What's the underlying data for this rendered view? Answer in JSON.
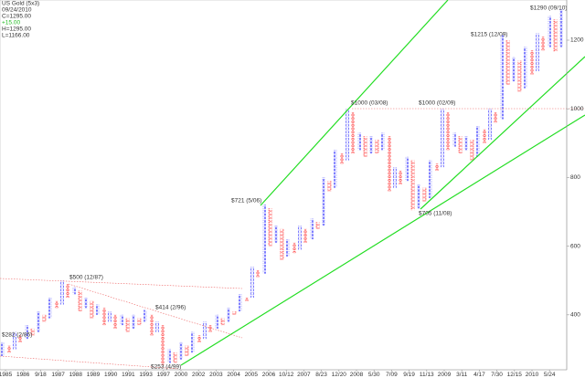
{
  "chart_data": {
    "type": "pointfigure",
    "title": "US Gold (5x3)",
    "info": [
      "09/24/2010",
      "C=1295.00",
      "+15.00",
      "H=1295.00",
      "L=1166.00"
    ],
    "info_colors": [
      "#333",
      "#333",
      "#22bb22",
      "#333",
      "#333"
    ],
    "x_labels": [
      "1985",
      "1986",
      "9/18",
      "1987",
      "1988",
      "1989",
      "1990",
      "1991",
      "1993",
      "1997",
      "2000",
      "2002",
      "2003",
      "2004",
      "2005",
      "2006",
      "10/12",
      "2007",
      "8/23",
      "12/20",
      "2008",
      "5/30",
      "7/09",
      "9/19",
      "11/13",
      "2009",
      "3/11",
      "4/17",
      "7/30",
      "12/15",
      "2010",
      "5/24"
    ],
    "ylim": [
      240,
      1317
    ],
    "yticks": [
      400,
      600,
      800,
      1000,
      1200
    ],
    "first_column_rising": true,
    "x_color": "#5a5aff",
    "o_color": "#ff3c3c",
    "box_size": 10,
    "columns": [
      [
        280,
        320
      ],
      [
        290,
        310
      ],
      [
        300,
        350
      ],
      [
        320,
        340
      ],
      [
        330,
        370
      ],
      [
        340,
        360
      ],
      [
        350,
        410
      ],
      [
        380,
        400
      ],
      [
        390,
        450
      ],
      [
        420,
        440
      ],
      [
        430,
        500
      ],
      [
        450,
        490
      ],
      [
        460,
        480
      ],
      [
        410,
        470
      ],
      [
        420,
        450
      ],
      [
        390,
        440
      ],
      [
        400,
        430
      ],
      [
        370,
        420
      ],
      [
        380,
        410
      ],
      [
        360,
        400
      ],
      [
        370,
        400
      ],
      [
        350,
        390
      ],
      [
        360,
        400
      ],
      [
        370,
        390
      ],
      [
        380,
        414
      ],
      [
        340,
        400
      ],
      [
        350,
        380
      ],
      [
        253,
        370
      ],
      [
        260,
        300
      ],
      [
        260,
        290
      ],
      [
        270,
        320
      ],
      [
        280,
        310
      ],
      [
        290,
        350
      ],
      [
        320,
        340
      ],
      [
        330,
        380
      ],
      [
        350,
        370
      ],
      [
        360,
        400
      ],
      [
        370,
        390
      ],
      [
        380,
        420
      ],
      [
        400,
        410
      ],
      [
        410,
        460
      ],
      [
        440,
        450
      ],
      [
        450,
        540
      ],
      [
        510,
        530
      ],
      [
        520,
        721
      ],
      [
        600,
        710
      ],
      [
        610,
        660
      ],
      [
        560,
        650
      ],
      [
        570,
        620
      ],
      [
        580,
        610
      ],
      [
        590,
        660
      ],
      [
        610,
        650
      ],
      [
        620,
        680
      ],
      [
        650,
        670
      ],
      [
        660,
        800
      ],
      [
        760,
        790
      ],
      [
        770,
        880
      ],
      [
        840,
        870
      ],
      [
        850,
        1000
      ],
      [
        870,
        990
      ],
      [
        880,
        930
      ],
      [
        860,
        920
      ],
      [
        870,
        920
      ],
      [
        870,
        910
      ],
      [
        880,
        930
      ],
      [
        760,
        920
      ],
      [
        770,
        830
      ],
      [
        780,
        820
      ],
      [
        790,
        860
      ],
      [
        705,
        850
      ],
      [
        710,
        780
      ],
      [
        730,
        770
      ],
      [
        740,
        850
      ],
      [
        820,
        840
      ],
      [
        830,
        1000
      ],
      [
        880,
        990
      ],
      [
        890,
        930
      ],
      [
        870,
        920
      ],
      [
        880,
        920
      ],
      [
        850,
        910
      ],
      [
        860,
        950
      ],
      [
        900,
        940
      ],
      [
        910,
        1000
      ],
      [
        960,
        990
      ],
      [
        970,
        1215
      ],
      [
        1070,
        1200
      ],
      [
        1080,
        1150
      ],
      [
        1050,
        1140
      ],
      [
        1060,
        1180
      ],
      [
        1100,
        1170
      ],
      [
        1110,
        1220
      ],
      [
        1170,
        1210
      ],
      [
        1180,
        1270
      ],
      [
        1166,
        1260
      ],
      [
        1180,
        1290
      ]
    ],
    "annotations": [
      "$1290 (09/10)",
      "$1215 (12/09)",
      "$1000 (03/08)",
      "$1000 (02/09)",
      "$721 (5/06)",
      "$705 (11/08)",
      "$500 (12/87)",
      "$414 (2/96)",
      "$282 (2/85)",
      "$253 (4/99)"
    ]
  }
}
